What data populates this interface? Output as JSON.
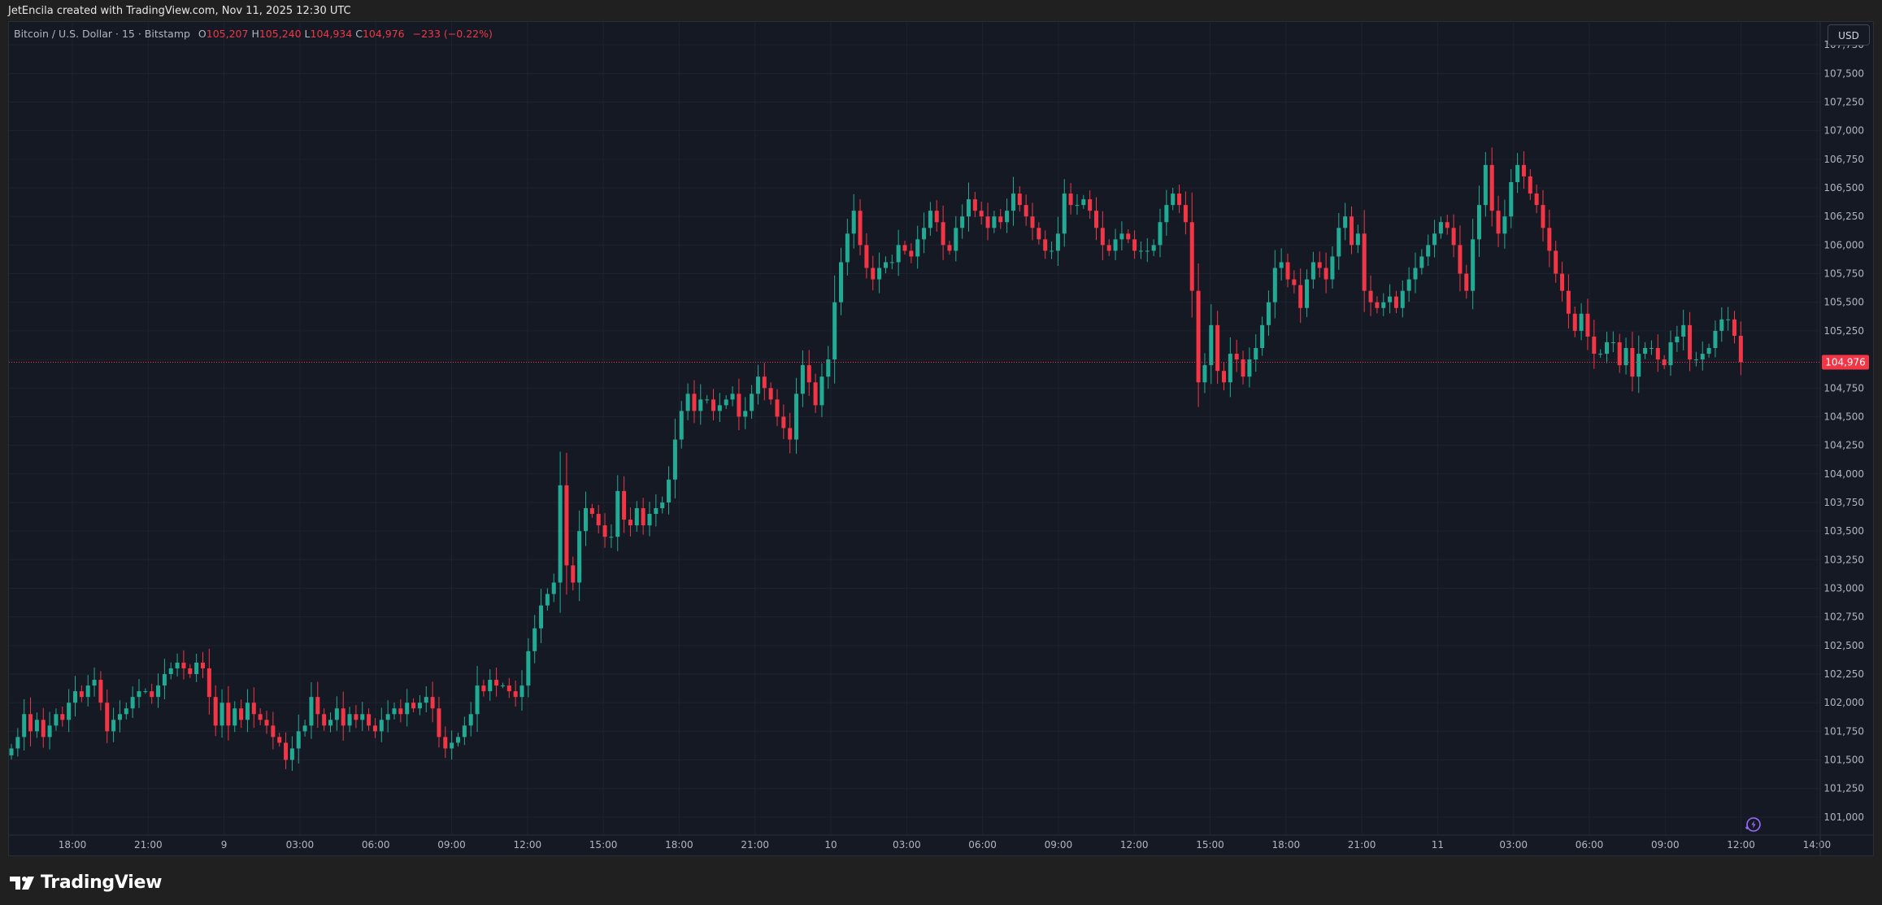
{
  "header": {
    "credit": "JetEncila created with TradingView.com, Nov 11, 2025 12:30 UTC"
  },
  "legend": {
    "symbol": "Bitcoin / U.S. Dollar · 15 · Bitstamp",
    "open_label": "O",
    "open": "105,207",
    "high_label": "H",
    "high": "105,240",
    "low_label": "L",
    "low": "104,934",
    "close_label": "C",
    "close": "104,976",
    "change": "−233 (−0.22%)"
  },
  "toolbar": {
    "currency": "USD"
  },
  "footer": {
    "brand": "TradingView"
  },
  "icons": {
    "brand_logo": "tradingview-logo-icon",
    "scroll_to_realtime": "lightning-icon"
  },
  "colors": {
    "up": "#22ab94",
    "down": "#f23645",
    "background": "#151924",
    "grid": "#1f2330",
    "price_line": "#f23645",
    "text": "#d1d4dc"
  },
  "chart_data": {
    "type": "candlestick",
    "title": "",
    "symbol": "BTCUSD",
    "interval": "15",
    "exchange": "Bitstamp",
    "grid": true,
    "ylim": [
      100850,
      107950
    ],
    "yticks": [
      "107,750",
      "107,500",
      "107,250",
      "107,000",
      "106,750",
      "106,500",
      "106,250",
      "106,000",
      "105,750",
      "105,500",
      "105,250",
      "105,000",
      "104,750",
      "104,500",
      "104,250",
      "104,000",
      "103,750",
      "103,500",
      "103,250",
      "103,000",
      "102,750",
      "102,500",
      "102,250",
      "102,000",
      "101,750",
      "101,500",
      "101,250",
      "101,000"
    ],
    "xticks": [
      "18:00",
      "21:00",
      "9",
      "03:00",
      "06:00",
      "09:00",
      "12:00",
      "15:00",
      "18:00",
      "21:00",
      "10",
      "03:00",
      "06:00",
      "09:00",
      "12:00",
      "15:00",
      "18:00",
      "21:00",
      "11",
      "03:00",
      "06:00",
      "09:00",
      "12:00",
      "14:00"
    ],
    "last_price": 104976,
    "last_price_label": "104,976",
    "close_series": [
      101600,
      101700,
      101900,
      101750,
      101850,
      101700,
      101800,
      101900,
      101850,
      102000,
      102100,
      102050,
      102150,
      102200,
      102000,
      101750,
      101850,
      101900,
      101950,
      102050,
      102100,
      102100,
      102050,
      102150,
      102250,
      102300,
      102350,
      102300,
      102250,
      102350,
      102300,
      102050,
      101800,
      102000,
      101800,
      101950,
      101850,
      102000,
      101900,
      101850,
      101800,
      101700,
      101650,
      101500,
      101600,
      101750,
      101800,
      102050,
      101900,
      101800,
      101850,
      101950,
      101800,
      101900,
      101850,
      101900,
      101800,
      101750,
      101850,
      101900,
      101950,
      101900,
      102000,
      101950,
      102000,
      102050,
      101950,
      101700,
      101600,
      101650,
      101700,
      101800,
      101900,
      102150,
      102100,
      102200,
      102150,
      102150,
      102100,
      102050,
      102150,
      102450,
      102650,
      102850,
      102950,
      103050,
      103900,
      103200,
      103050,
      103500,
      103700,
      103650,
      103550,
      103450,
      103450,
      103850,
      103600,
      103550,
      103700,
      103550,
      103650,
      103700,
      103750,
      103950,
      104300,
      104550,
      104700,
      104550,
      104650,
      104650,
      104550,
      104600,
      104650,
      104700,
      104500,
      104550,
      104700,
      104850,
      104750,
      104650,
      104500,
      104400,
      104300,
      104700,
      104950,
      104800,
      104600,
      104850,
      105000,
      105500,
      105850,
      106100,
      106300,
      106000,
      105800,
      105700,
      105800,
      105850,
      105850,
      106000,
      105950,
      105900,
      106050,
      106150,
      106300,
      106200,
      106000,
      105950,
      106150,
      106250,
      106400,
      106300,
      106250,
      106150,
      106250,
      106200,
      106300,
      106450,
      106350,
      106250,
      106150,
      106050,
      105950,
      105950,
      106100,
      106450,
      106350,
      106350,
      106400,
      106300,
      106150,
      106000,
      105950,
      106050,
      106100,
      106050,
      105950,
      105950,
      105950,
      106000,
      106200,
      106350,
      106450,
      106350,
      106200,
      105600,
      104800,
      104950,
      105300,
      104900,
      104800,
      105050,
      105000,
      104850,
      105000,
      105100,
      105300,
      105500,
      105800,
      105850,
      105700,
      105650,
      105450,
      105700,
      105850,
      105800,
      105700,
      105900,
      106150,
      106250,
      106000,
      106100,
      105600,
      105500,
      105450,
      105500,
      105550,
      105450,
      105600,
      105700,
      105800,
      105900,
      106000,
      106100,
      106200,
      106150,
      106000,
      105750,
      105600,
      106050,
      106350,
      106700,
      106300,
      106100,
      106250,
      106550,
      106700,
      106600,
      106450,
      106350,
      106150,
      105950,
      105750,
      105600,
      105400,
      105250,
      105400,
      105200,
      105050,
      105050,
      105150,
      105150,
      104950,
      105100,
      104850,
      105050,
      105100,
      105100,
      105000,
      104950,
      105150,
      105200,
      105300,
      105000,
      105000,
      105050,
      105100,
      105250,
      105350,
      105350,
      105207,
      104976
    ]
  }
}
